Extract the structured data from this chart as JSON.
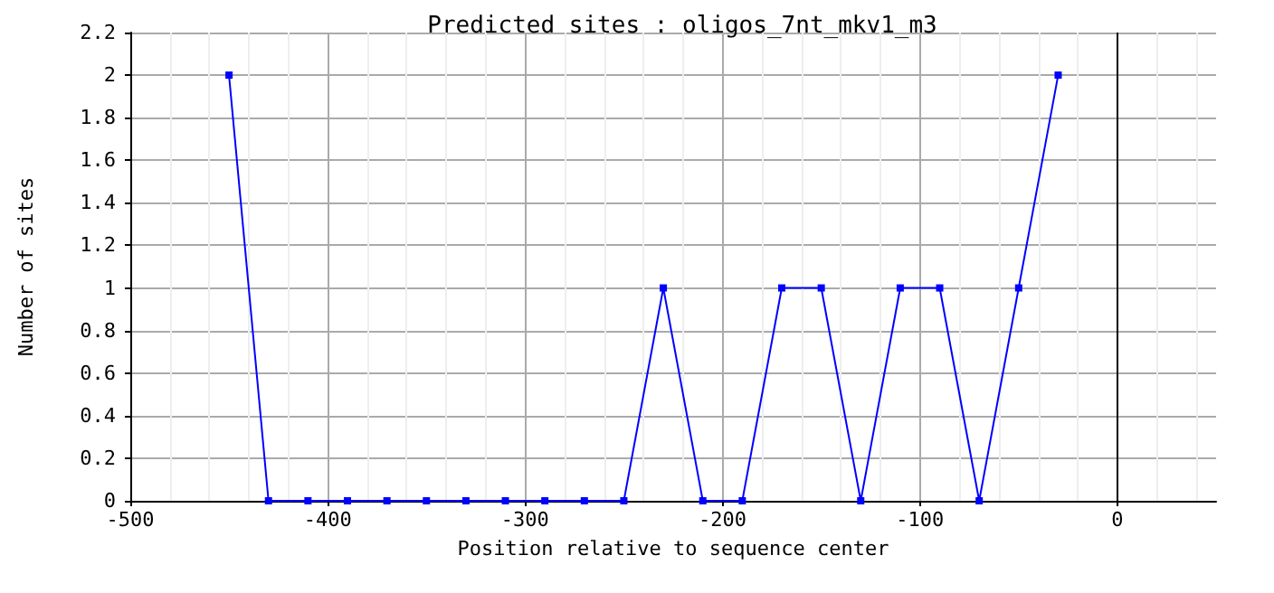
{
  "chart_data": {
    "type": "line",
    "title": "Predicted sites : oligos_7nt_mkv1_m3",
    "xlabel": "Position relative to sequence center",
    "ylabel": "Number of sites",
    "x": [
      -450,
      -430,
      -410,
      -390,
      -370,
      -350,
      -330,
      -310,
      -290,
      -270,
      -250,
      -230,
      -210,
      -190,
      -170,
      -150,
      -130,
      -110,
      -90,
      -70,
      -50,
      -30
    ],
    "series": [
      {
        "color": "#0000ff",
        "values": [
          2,
          0,
          0,
          0,
          0,
          0,
          0,
          0,
          0,
          0,
          0,
          1,
          0,
          0,
          1,
          1,
          0,
          1,
          1,
          0,
          1,
          2
        ]
      }
    ],
    "xlim": [
      -500,
      50
    ],
    "xticks": [
      -500,
      -400,
      -300,
      -200,
      -100,
      0
    ],
    "ylim": [
      0,
      2.2
    ],
    "yticks": [
      0,
      0.2,
      0.4,
      0.6,
      0.8,
      1,
      1.2,
      1.4,
      1.6,
      1.8,
      2,
      2.2
    ],
    "ref_lines": [
      {
        "axis": "x",
        "value": 0,
        "color": "#000000"
      }
    ],
    "grid": true,
    "marker": "square",
    "line_style": "solid"
  }
}
